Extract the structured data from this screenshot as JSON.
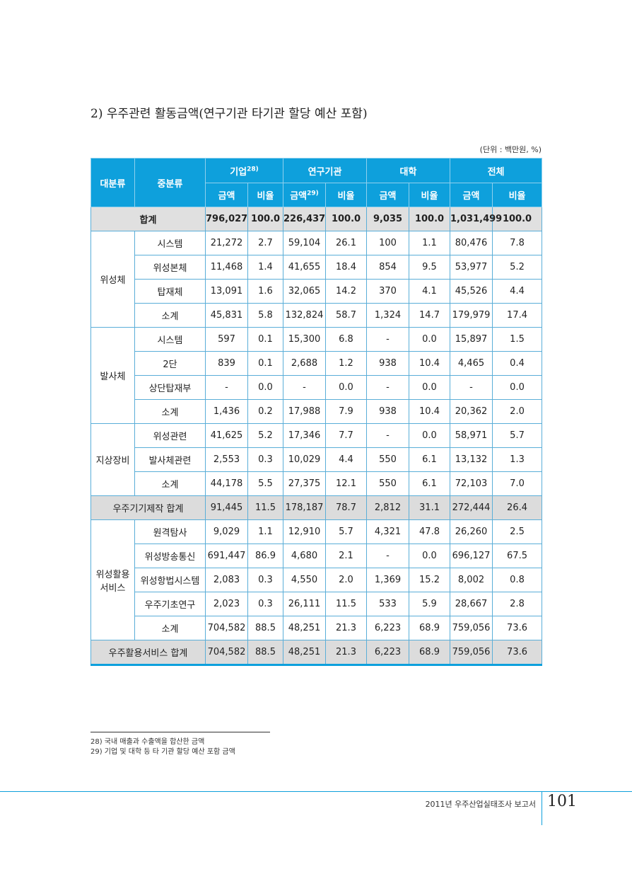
{
  "title": "2) 우주관련 활동금액(연구기관 타기관 할당 예산 포함)",
  "unit": "(단위 : 백만원, %)",
  "header": {
    "col_major": "대분류",
    "col_minor": "중분류",
    "groups": [
      {
        "label": "기업",
        "sup": "28)"
      },
      {
        "label": "연구기관",
        "sup": ""
      },
      {
        "label": "대학",
        "sup": ""
      },
      {
        "label": "전체",
        "sup": ""
      }
    ],
    "sub": [
      {
        "label": "금액",
        "sup": ""
      },
      {
        "label": "비율",
        "sup": ""
      },
      {
        "label": "금액",
        "sup": "29)"
      },
      {
        "label": "비율",
        "sup": ""
      },
      {
        "label": "금액",
        "sup": ""
      },
      {
        "label": "비율",
        "sup": ""
      },
      {
        "label": "금액",
        "sup": ""
      },
      {
        "label": "비율",
        "sup": ""
      }
    ]
  },
  "rows": {
    "total": {
      "label": "합계",
      "v": [
        "796,027",
        "100.0",
        "226,437",
        "100.0",
        "9,035",
        "100.0",
        "1,031,499",
        "100.0"
      ]
    },
    "sat": {
      "cat": "위성체",
      "items": [
        {
          "label": "시스템",
          "v": [
            "21,272",
            "2.7",
            "59,104",
            "26.1",
            "100",
            "1.1",
            "80,476",
            "7.8"
          ]
        },
        {
          "label": "위성본체",
          "v": [
            "11,468",
            "1.4",
            "41,655",
            "18.4",
            "854",
            "9.5",
            "53,977",
            "5.2"
          ]
        },
        {
          "label": "탑재체",
          "v": [
            "13,091",
            "1.6",
            "32,065",
            "14.2",
            "370",
            "4.1",
            "45,526",
            "4.4"
          ]
        },
        {
          "label": "소계",
          "v": [
            "45,831",
            "5.8",
            "132,824",
            "58.7",
            "1,324",
            "14.7",
            "179,979",
            "17.4"
          ]
        }
      ]
    },
    "launch": {
      "cat": "발사체",
      "items": [
        {
          "label": "시스템",
          "v": [
            "597",
            "0.1",
            "15,300",
            "6.8",
            "-",
            "0.0",
            "15,897",
            "1.5"
          ]
        },
        {
          "label": "2단",
          "v": [
            "839",
            "0.1",
            "2,688",
            "1.2",
            "938",
            "10.4",
            "4,465",
            "0.4"
          ]
        },
        {
          "label": "상단탑재부",
          "v": [
            "-",
            "0.0",
            "-",
            "0.0",
            "-",
            "0.0",
            "-",
            "0.0"
          ]
        },
        {
          "label": "소계",
          "v": [
            "1,436",
            "0.2",
            "17,988",
            "7.9",
            "938",
            "10.4",
            "20,362",
            "2.0"
          ]
        }
      ]
    },
    "ground": {
      "cat": "지상장비",
      "items": [
        {
          "label": "위성관련",
          "v": [
            "41,625",
            "5.2",
            "17,346",
            "7.7",
            "-",
            "0.0",
            "58,971",
            "5.7"
          ]
        },
        {
          "label": "발사체관련",
          "v": [
            "2,553",
            "0.3",
            "10,029",
            "4.4",
            "550",
            "6.1",
            "13,132",
            "1.3"
          ]
        },
        {
          "label": "소계",
          "v": [
            "44,178",
            "5.5",
            "27,375",
            "12.1",
            "550",
            "6.1",
            "72,103",
            "7.0"
          ]
        }
      ]
    },
    "mfg_total": {
      "label": "우주기기제작 합계",
      "v": [
        "91,445",
        "11.5",
        "178,187",
        "78.7",
        "2,812",
        "31.1",
        "272,444",
        "26.4"
      ]
    },
    "service": {
      "cat": "위성활용 서비스",
      "items": [
        {
          "label": "원격탐사",
          "v": [
            "9,029",
            "1.1",
            "12,910",
            "5.7",
            "4,321",
            "47.8",
            "26,260",
            "2.5"
          ]
        },
        {
          "label": "위성방송통신",
          "v": [
            "691,447",
            "86.9",
            "4,680",
            "2.1",
            "-",
            "0.0",
            "696,127",
            "67.5"
          ]
        },
        {
          "label": "위성항법시스템",
          "v": [
            "2,083",
            "0.3",
            "4,550",
            "2.0",
            "1,369",
            "15.2",
            "8,002",
            "0.8"
          ]
        },
        {
          "label": "우주기초연구",
          "v": [
            "2,023",
            "0.3",
            "26,111",
            "11.5",
            "533",
            "5.9",
            "28,667",
            "2.8"
          ]
        },
        {
          "label": "소계",
          "v": [
            "704,582",
            "88.5",
            "48,251",
            "21.3",
            "6,223",
            "68.9",
            "759,056",
            "73.6"
          ]
        }
      ]
    },
    "service_total": {
      "label": "우주활용서비스 합계",
      "v": [
        "704,582",
        "88.5",
        "48,251",
        "21.3",
        "6,223",
        "68.9",
        "759,056",
        "73.6"
      ]
    }
  },
  "footnotes": [
    "28) 국내 매출과 수출액을 합산한 금액",
    "29) 기업 및 대학 등 타 기관 할당 예산 포함 금액"
  ],
  "footer": {
    "report": "2011년 우주산업실태조사 보고서",
    "page": "101"
  }
}
